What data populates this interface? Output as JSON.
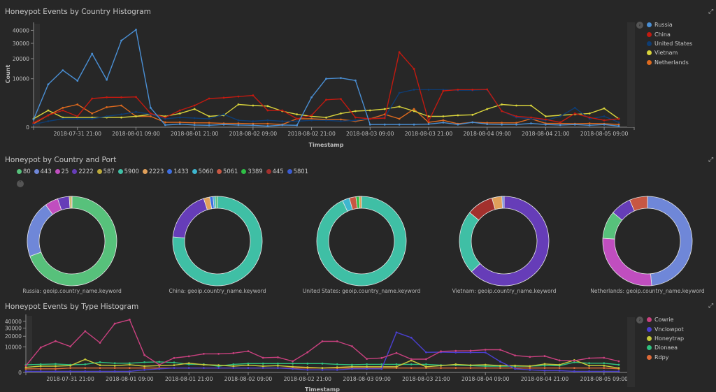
{
  "panels": {
    "country_histogram": {
      "title": "Honeypot Events by Country Histogram"
    },
    "country_port": {
      "title": "Honeypot by Country and Port"
    },
    "type_histogram": {
      "title": "Honeypot Events by Type Histogram"
    }
  },
  "icons": {
    "expand": "expand-icon",
    "legend_toggle": "chevron-right-icon",
    "collapse": "chevron-up-icon"
  },
  "chart_data": [
    {
      "type": "line",
      "title": "Honeypot Events by Country Histogram",
      "xlabel": "Timestamp",
      "ylabel": "Count",
      "yscale": "sqrt",
      "ylim": [
        0,
        42000
      ],
      "yticks": [
        0,
        10000,
        20000,
        30000,
        40000
      ],
      "x_start": "2018-07-31 12:00",
      "x_interval_hours": 3,
      "xticks": [
        "2018-07-31 21:00",
        "2018-08-01 09:00",
        "2018-08-01 21:00",
        "2018-08-02 09:00",
        "2018-08-02 21:00",
        "2018-08-03 09:00",
        "2018-08-03 21:00",
        "2018-08-04 09:00",
        "2018-08-04 21:00",
        "2018-08-05 09:00"
      ],
      "legend_position": "right",
      "series": [
        {
          "name": "Russia",
          "color": "#4a8fd4",
          "values": [
            250,
            7800,
            13800,
            9200,
            23000,
            9600,
            32000,
            40500,
            1600,
            20,
            40,
            20,
            15,
            30,
            20,
            15,
            5,
            20,
            15,
            3800,
            10000,
            10300,
            9300,
            30,
            30,
            30,
            30,
            40,
            90,
            30,
            100,
            40,
            30,
            30,
            60,
            30,
            20,
            30,
            15,
            30,
            5
          ]
        },
        {
          "name": "China",
          "color": "#c21a10",
          "values": [
            80,
            600,
            1200,
            500,
            3500,
            3800,
            3800,
            3900,
            800,
            400,
            1200,
            2000,
            3500,
            3700,
            4000,
            4300,
            1200,
            1200,
            300,
            600,
            3200,
            3400,
            400,
            300,
            350,
            24000,
            14500,
            150,
            5600,
            6000,
            6000,
            6100,
            1100,
            500,
            400,
            250,
            100,
            800,
            400,
            200,
            300
          ]
        },
        {
          "name": "United States",
          "color": "#0e3d74",
          "values": [
            30,
            150,
            300,
            300,
            300,
            500,
            700,
            1000,
            700,
            300,
            400,
            350,
            300,
            700,
            200,
            150,
            200,
            150,
            150,
            200,
            200,
            150,
            200,
            300,
            400,
            5000,
            6000,
            6000,
            6000,
            5800,
            5800,
            6000,
            1100,
            400,
            300,
            200,
            500,
            1600,
            300,
            500,
            100
          ]
        },
        {
          "name": "Vietnam",
          "color": "#d9d43b",
          "values": [
            300,
            1200,
            400,
            400,
            400,
            400,
            400,
            500,
            700,
            500,
            800,
            1400,
            500,
            600,
            2200,
            2000,
            1900,
            1100,
            700,
            500,
            400,
            800,
            1100,
            1200,
            1400,
            1800,
            1100,
            500,
            500,
            600,
            650,
            1400,
            2200,
            2000,
            2000,
            500,
            600,
            700,
            800,
            1500,
            300
          ]
        },
        {
          "name": "Netherlands",
          "color": "#de6a1e",
          "values": [
            50,
            600,
            1600,
            2200,
            800,
            1700,
            2000,
            500,
            500,
            100,
            100,
            80,
            80,
            60,
            60,
            50,
            50,
            30,
            300,
            300,
            250,
            250,
            150,
            300,
            700,
            300,
            1400,
            100,
            200,
            50,
            100,
            80,
            80,
            80,
            300,
            60,
            60,
            50,
            60,
            50,
            30
          ]
        }
      ]
    },
    {
      "type": "pie",
      "title": "Honeypot by Country and Port",
      "legend": [
        {
          "label": "80",
          "color": "#57c17b"
        },
        {
          "label": "443",
          "color": "#6f87d8"
        },
        {
          "label": "25",
          "color": "#c04ebf"
        },
        {
          "label": "2222",
          "color": "#663db8"
        },
        {
          "label": "587",
          "color": "#bca93a"
        },
        {
          "label": "5900",
          "color": "#3fbfa5"
        },
        {
          "label": "2223",
          "color": "#e0a05a"
        },
        {
          "label": "1433",
          "color": "#3d6ee0"
        },
        {
          "label": "5060",
          "color": "#3eb6cf"
        },
        {
          "label": "5061",
          "color": "#c75743"
        },
        {
          "label": "3389",
          "color": "#2fbf45"
        },
        {
          "label": "445",
          "color": "#a3302d"
        },
        {
          "label": "5801",
          "color": "#3a5bd0"
        }
      ],
      "donuts": [
        {
          "label": "Russia: geoip.country_name.keyword",
          "slices": [
            {
              "port": "80",
              "value": 69.5
            },
            {
              "port": "443",
              "value": 20.5
            },
            {
              "port": "25",
              "value": 4.8
            },
            {
              "port": "2222",
              "value": 4.2
            },
            {
              "port": "587",
              "value": 0.6
            },
            {
              "port": "2223",
              "value": 0.4
            }
          ]
        },
        {
          "label": "China: geoip.country_name.keyword",
          "slices": [
            {
              "port": "5900",
              "value": 76.5
            },
            {
              "port": "2222",
              "value": 18.5
            },
            {
              "port": "2223",
              "value": 2.2
            },
            {
              "port": "1433",
              "value": 1.2
            },
            {
              "port": "5060",
              "value": 0.8
            },
            {
              "port": "80",
              "value": 0.8
            }
          ]
        },
        {
          "label": "United States: geoip.country_name.keyword",
          "slices": [
            {
              "port": "5900",
              "value": 93.0
            },
            {
              "port": "5060",
              "value": 2.6
            },
            {
              "port": "5061",
              "value": 2.4
            },
            {
              "port": "3389",
              "value": 1.2
            },
            {
              "port": "2223",
              "value": 0.8
            }
          ]
        },
        {
          "label": "Vietnam: geoip.country_name.keyword",
          "slices": [
            {
              "port": "2222",
              "value": 63.0
            },
            {
              "port": "5900",
              "value": 23.0
            },
            {
              "port": "445",
              "value": 9.6
            },
            {
              "port": "2223",
              "value": 3.6
            },
            {
              "port": "443",
              "value": 0.8
            }
          ]
        },
        {
          "label": "Netherlands: geoip.country_name.keyword",
          "slices": [
            {
              "port": "443",
              "value": 48.5
            },
            {
              "port": "25",
              "value": 27.5
            },
            {
              "port": "80",
              "value": 10.0
            },
            {
              "port": "2222",
              "value": 7.5
            },
            {
              "port": "5061",
              "value": 6.5
            }
          ]
        }
      ]
    },
    {
      "type": "line",
      "title": "Honeypot Events by Type Histogram",
      "xlabel": "Timestamp",
      "ylabel": "",
      "yscale": "sqrt",
      "ylim": [
        0,
        42000
      ],
      "yticks": [
        0,
        10000,
        20000,
        30000,
        40000
      ],
      "x_start": "2018-07-31 12:00",
      "x_interval_hours": 3,
      "xticks": [
        "2018-07-31 21:00",
        "2018-08-01 09:00",
        "2018-08-01 21:00",
        "2018-08-02 09:00",
        "2018-08-02 21:00",
        "2018-08-03 09:00",
        "2018-08-03 21:00",
        "2018-08-04 09:00",
        "2018-08-04 21:00",
        "2018-08-05 09:00"
      ],
      "legend_position": "right",
      "series": [
        {
          "name": "Cowrie",
          "color": "#c9417f",
          "values": [
            700,
            9500,
            15000,
            10300,
            26000,
            13500,
            36500,
            42500,
            4600,
            900,
            3200,
            4000,
            5300,
            5300,
            5700,
            6900,
            3300,
            3500,
            1900,
            6200,
            14800,
            14800,
            10500,
            2800,
            3200,
            5800,
            2700,
            2700,
            6800,
            7100,
            7200,
            7900,
            7900,
            4400,
            3700,
            4100,
            2200,
            2100,
            3100,
            3300,
            1900
          ]
        },
        {
          "name": "Vnclowpot",
          "color": "#4a3fd0",
          "values": [
            20,
            20,
            20,
            20,
            20,
            20,
            20,
            20,
            100,
            200,
            300,
            300,
            300,
            300,
            300,
            300,
            300,
            300,
            200,
            100,
            100,
            100,
            200,
            200,
            200,
            24500,
            18500,
            6200,
            6300,
            6100,
            6100,
            6100,
            1800,
            200,
            100,
            50,
            50,
            20,
            20,
            20,
            20
          ]
        },
        {
          "name": "Honeytrap",
          "color": "#c6c93a",
          "values": [
            400,
            600,
            600,
            700,
            2600,
            800,
            700,
            900,
            600,
            700,
            800,
            1300,
            900,
            800,
            600,
            800,
            600,
            700,
            500,
            400,
            300,
            400,
            500,
            500,
            500,
            500,
            2200,
            500,
            700,
            1000,
            800,
            900,
            700,
            700,
            600,
            1100,
            900,
            2300,
            700,
            700,
            300
          ]
        },
        {
          "name": "Dionaea",
          "color": "#2fc17f",
          "values": [
            900,
            1000,
            1100,
            900,
            1000,
            1600,
            1300,
            1300,
            1600,
            1700,
            1500,
            1000,
            1000,
            600,
            1000,
            1200,
            1200,
            1200,
            1200,
            1200,
            1200,
            1000,
            900,
            1000,
            1000,
            1000,
            1000,
            1000,
            800,
            800,
            700,
            600,
            600,
            600,
            600,
            700,
            700,
            1600,
            1300,
            1300,
            900
          ]
        },
        {
          "name": "Rdpy",
          "color": "#de6a38",
          "values": [
            200,
            200,
            200,
            300,
            300,
            300,
            300,
            300,
            300,
            300,
            300,
            300,
            300,
            300,
            300,
            300,
            300,
            300,
            300,
            300,
            300,
            300,
            300,
            300,
            300,
            300,
            300,
            300,
            300,
            300,
            300,
            300,
            300,
            300,
            300,
            300,
            300,
            300,
            300,
            300,
            200
          ]
        }
      ]
    }
  ]
}
